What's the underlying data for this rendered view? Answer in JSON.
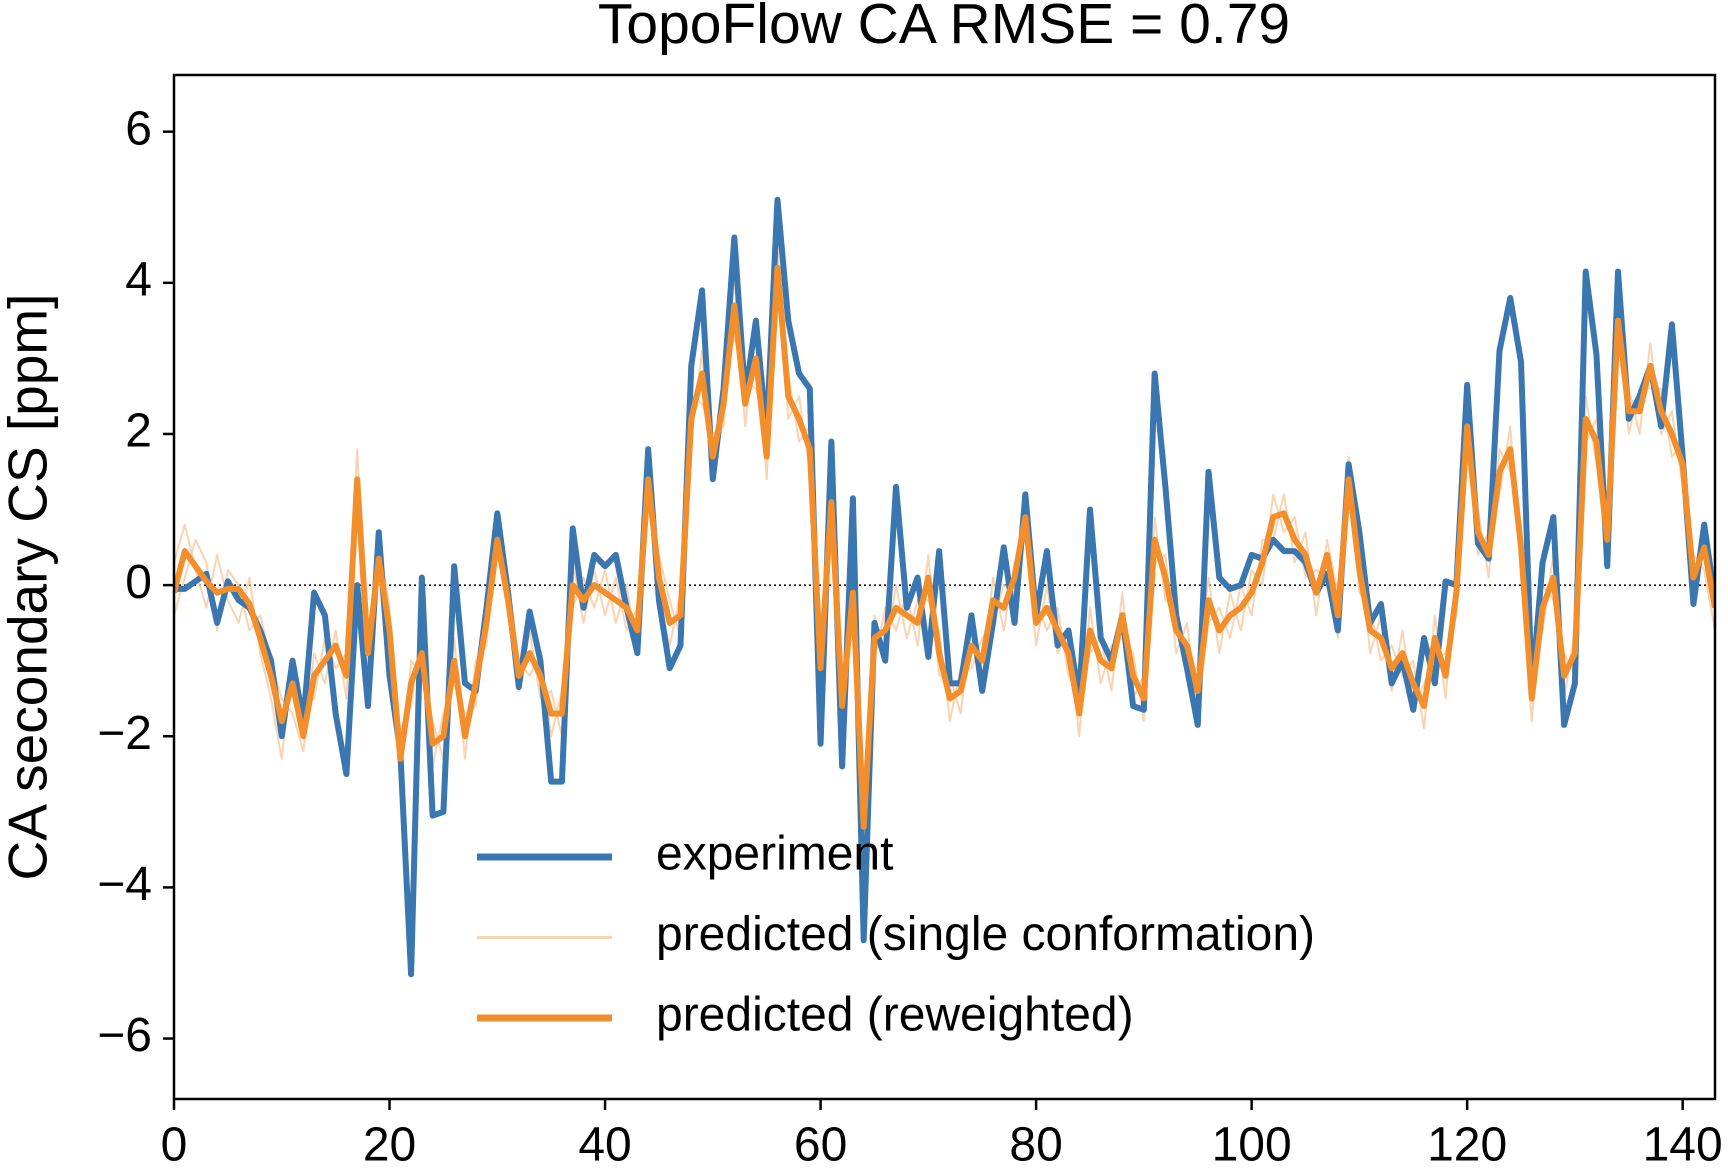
{
  "chart_data": {
    "type": "line",
    "title": "TopoFlow CA RMSE = 0.79",
    "y_label": "CA secondary CS [ppm]",
    "x": [
      0,
      1,
      2,
      3,
      4,
      5,
      6,
      7,
      8,
      9,
      10,
      11,
      12,
      13,
      14,
      15,
      16,
      17,
      18,
      19,
      20,
      21,
      22,
      23,
      24,
      25,
      26,
      27,
      28,
      29,
      30,
      31,
      32,
      33,
      34,
      35,
      36,
      37,
      38,
      39,
      40,
      41,
      42,
      43,
      44,
      45,
      46,
      47,
      48,
      49,
      50,
      51,
      52,
      53,
      54,
      55,
      56,
      57,
      58,
      59,
      60,
      61,
      62,
      63,
      64,
      65,
      66,
      67,
      68,
      69,
      70,
      71,
      72,
      73,
      74,
      75,
      76,
      77,
      78,
      79,
      80,
      81,
      82,
      83,
      84,
      85,
      86,
      87,
      88,
      89,
      90,
      91,
      92,
      93,
      94,
      95,
      96,
      97,
      98,
      99,
      100,
      101,
      102,
      103,
      104,
      105,
      106,
      107,
      108,
      109,
      110,
      111,
      112,
      113,
      114,
      115,
      116,
      117,
      118,
      119,
      120,
      121,
      122,
      123,
      124,
      125,
      126,
      127,
      128,
      129,
      130,
      131,
      132,
      133,
      134,
      135,
      136,
      137,
      138,
      139,
      140,
      141,
      142,
      143
    ],
    "series": [
      {
        "name": "experiment",
        "color": "#3a76af",
        "line_width": 6,
        "opacity": 1,
        "values": [
          -0.05,
          -0.05,
          0.05,
          0.15,
          -0.5,
          0.05,
          -0.2,
          -0.3,
          -0.6,
          -1.0,
          -2.0,
          -1.0,
          -1.8,
          -0.1,
          -0.4,
          -1.7,
          -2.5,
          0.0,
          -1.6,
          0.7,
          -1.2,
          -2.2,
          -5.15,
          0.1,
          -3.05,
          -3.0,
          0.25,
          -1.3,
          -1.4,
          -0.3,
          0.95,
          -0.1,
          -1.35,
          -0.35,
          -1.0,
          -2.6,
          -2.6,
          0.75,
          -0.3,
          0.4,
          0.25,
          0.4,
          -0.3,
          -0.9,
          1.8,
          -0.2,
          -1.1,
          -0.8,
          2.9,
          3.9,
          1.4,
          2.6,
          4.6,
          2.5,
          3.5,
          2.0,
          5.1,
          3.5,
          2.8,
          2.6,
          -2.1,
          1.9,
          -2.4,
          1.15,
          -4.7,
          -0.5,
          -1.0,
          1.3,
          -0.3,
          0.1,
          -0.95,
          0.45,
          -1.3,
          -1.3,
          -0.4,
          -1.4,
          -0.5,
          0.5,
          -0.5,
          1.2,
          -0.4,
          0.45,
          -0.8,
          -0.6,
          -1.5,
          1.0,
          -0.7,
          -1.0,
          -0.4,
          -1.6,
          -1.65,
          2.8,
          1.3,
          -0.4,
          -1.1,
          -1.85,
          1.5,
          0.1,
          -0.05,
          0.0,
          0.4,
          0.35,
          0.6,
          0.45,
          0.45,
          0.3,
          -0.1,
          0.15,
          -0.6,
          1.6,
          0.7,
          -0.5,
          -0.25,
          -1.3,
          -1.0,
          -1.65,
          -0.7,
          -1.3,
          0.05,
          0.0,
          2.65,
          0.55,
          0.35,
          3.1,
          3.8,
          2.95,
          -1.4,
          0.3,
          0.9,
          -1.85,
          -1.3,
          4.15,
          3.05,
          0.25,
          4.15,
          2.2,
          2.5,
          2.9,
          2.1,
          3.45,
          1.7,
          -0.25,
          0.8,
          -0.2
        ]
      },
      {
        "name": "predicted (single conformation)",
        "color": "#f8c9a0",
        "line_width": 2,
        "opacity": 0.8,
        "values": [
          0.3,
          0.8,
          0.2,
          -0.3,
          0.4,
          -0.2,
          -0.5,
          0.1,
          -0.9,
          -1.5,
          -2.3,
          -1.0,
          -1.6,
          -1.5,
          -0.7,
          -1.1,
          -0.9,
          1.8,
          -1.2,
          0.6,
          -0.3,
          -2.6,
          -1.0,
          -1.2,
          -1.8,
          -2.3,
          -0.7,
          -2.3,
          -1.0,
          -0.8,
          0.9,
          -0.4,
          -1.4,
          -0.6,
          -1.5,
          -1.4,
          -2.0,
          0.3,
          -0.5,
          0.2,
          -0.4,
          0.1,
          -0.6,
          -0.3,
          1.7,
          -0.2,
          -0.8,
          -0.1,
          1.9,
          3.1,
          1.4,
          2.7,
          3.3,
          2.7,
          2.6,
          2.0,
          3.8,
          2.8,
          1.9,
          2.1,
          -1.4,
          1.4,
          -1.3,
          -0.4,
          -2.8,
          -1.0,
          -0.3,
          -0.6,
          -0.1,
          -0.8,
          0.4,
          -1.2,
          -1.2,
          -1.7,
          -0.5,
          -1.3,
          0.1,
          -0.6,
          0.3,
          0.6,
          -0.8,
          0.0,
          -0.9,
          -0.6,
          -2.0,
          -0.3,
          -1.3,
          -0.8,
          -0.7,
          -0.9,
          -1.8,
          0.9,
          -0.2,
          -0.3,
          -1.1,
          -1.1,
          0.1,
          -0.9,
          -0.1,
          -0.6,
          0.2,
          0.0,
          1.2,
          0.7,
          0.9,
          0.1,
          0.2,
          0.1,
          -0.7,
          1.7,
          -0.1,
          -0.3,
          -1.0,
          -0.8,
          -1.2,
          -1.0,
          -1.9,
          -0.4,
          -1.5,
          0.2,
          1.8,
          1.0,
          0.1,
          1.8,
          1.5,
          0.8,
          -1.2,
          -0.6,
          0.4,
          -1.5,
          -0.6,
          1.9,
          2.2,
          0.3,
          3.2,
          2.6,
          2.0,
          3.2,
          2.0,
          2.3,
          1.3,
          0.4,
          0.2,
          -0.6
        ]
      },
      {
        "name": "predicted (single conformation)",
        "color": "#f8c9a0",
        "line_width": 2,
        "opacity": 0.8,
        "values": [
          -0.4,
          0.1,
          0.6,
          0.3,
          -0.6,
          0.2,
          0.0,
          -0.6,
          -0.4,
          -1.0,
          -1.5,
          -1.7,
          -2.2,
          -0.9,
          -1.3,
          -0.6,
          -1.5,
          1.1,
          -0.6,
          0.1,
          -1.0,
          -1.9,
          -1.6,
          -0.6,
          -2.4,
          -1.7,
          -1.3,
          -1.7,
          -1.6,
          -0.2,
          0.4,
          0.1,
          -1.0,
          -1.2,
          -0.9,
          -2.0,
          -1.4,
          -0.3,
          0.1,
          -0.3,
          0.2,
          -0.5,
          0.0,
          -0.9,
          1.1,
          0.4,
          -0.2,
          -0.7,
          2.5,
          2.4,
          2.0,
          2.1,
          4.1,
          2.1,
          3.4,
          1.4,
          4.5,
          2.2,
          2.5,
          1.5,
          -0.8,
          0.7,
          -1.9,
          0.2,
          -3.5,
          -0.4,
          -0.9,
          0.0,
          -0.7,
          -0.2,
          -0.2,
          -0.6,
          -1.8,
          -1.1,
          -1.1,
          -0.7,
          -0.5,
          0.0,
          -0.1,
          1.2,
          -0.2,
          -0.6,
          -0.3,
          -1.2,
          -1.4,
          -0.9,
          -0.7,
          -1.4,
          -0.1,
          -1.5,
          -1.2,
          0.3,
          0.4,
          -0.9,
          -0.5,
          -1.7,
          -0.5,
          -0.3,
          -0.7,
          0.0,
          -0.4,
          0.6,
          0.6,
          1.2,
          0.3,
          0.7,
          -0.4,
          0.6,
          -0.1,
          1.1,
          0.5,
          -0.9,
          -0.4,
          -1.4,
          -0.6,
          -1.6,
          -1.3,
          -1.0,
          -0.9,
          -0.4,
          2.4,
          0.4,
          0.7,
          1.2,
          2.1,
          0.2,
          -1.8,
          0.0,
          -0.2,
          -0.9,
          -1.2,
          2.5,
          1.6,
          0.9,
          3.8,
          2.0,
          2.6,
          2.6,
          2.6,
          1.7,
          1.9,
          -0.2,
          0.8,
          0.0
        ]
      },
      {
        "name": "predicted (reweighted)",
        "color": "#f28e2b",
        "line_width": 6,
        "opacity": 1,
        "values": [
          -0.1,
          0.45,
          0.25,
          0.05,
          -0.1,
          -0.05,
          -0.05,
          -0.25,
          -0.7,
          -1.2,
          -1.8,
          -1.3,
          -2.0,
          -1.2,
          -1.0,
          -0.8,
          -1.2,
          1.4,
          -0.9,
          0.35,
          -0.6,
          -2.3,
          -1.3,
          -0.9,
          -2.1,
          -2.0,
          -1.0,
          -2.0,
          -1.3,
          -0.5,
          0.6,
          -0.2,
          -1.2,
          -0.9,
          -1.2,
          -1.7,
          -1.7,
          0.0,
          -0.2,
          0.0,
          -0.1,
          -0.2,
          -0.3,
          -0.6,
          1.4,
          0.1,
          -0.5,
          -0.4,
          2.2,
          2.8,
          1.7,
          2.4,
          3.7,
          2.4,
          3.0,
          1.7,
          4.2,
          2.5,
          2.2,
          1.8,
          -1.1,
          1.1,
          -1.6,
          -0.1,
          -3.2,
          -0.7,
          -0.6,
          -0.3,
          -0.4,
          -0.5,
          0.1,
          -0.9,
          -1.5,
          -1.4,
          -0.8,
          -1.0,
          -0.2,
          -0.3,
          0.1,
          0.9,
          -0.5,
          -0.3,
          -0.6,
          -0.9,
          -1.7,
          -0.6,
          -1.0,
          -1.1,
          -0.4,
          -1.2,
          -1.5,
          0.6,
          0.1,
          -0.6,
          -0.8,
          -1.4,
          -0.2,
          -0.6,
          -0.4,
          -0.3,
          -0.1,
          0.3,
          0.9,
          0.95,
          0.6,
          0.4,
          -0.1,
          0.4,
          -0.4,
          1.4,
          0.2,
          -0.6,
          -0.7,
          -1.1,
          -0.9,
          -1.3,
          -1.6,
          -0.7,
          -1.2,
          -0.1,
          2.1,
          0.7,
          0.4,
          1.5,
          1.8,
          0.5,
          -1.5,
          -0.3,
          0.1,
          -1.2,
          -0.9,
          2.2,
          1.9,
          0.6,
          3.5,
          2.3,
          2.3,
          2.9,
          2.3,
          2.0,
          1.6,
          0.1,
          0.5,
          -0.3
        ]
      }
    ],
    "reference_line": 0,
    "xlim": [
      0,
      143
    ],
    "ylim": [
      -6.8,
      6.75
    ],
    "xticks": [
      0,
      20,
      40,
      60,
      80,
      100,
      120,
      140
    ],
    "yticks": [
      {
        "value": -6,
        "label": "−6"
      },
      {
        "value": -4,
        "label": "−4"
      },
      {
        "value": -2,
        "label": "−2"
      },
      0,
      2,
      4,
      6
    ],
    "grid": false,
    "legend": "lower center"
  }
}
